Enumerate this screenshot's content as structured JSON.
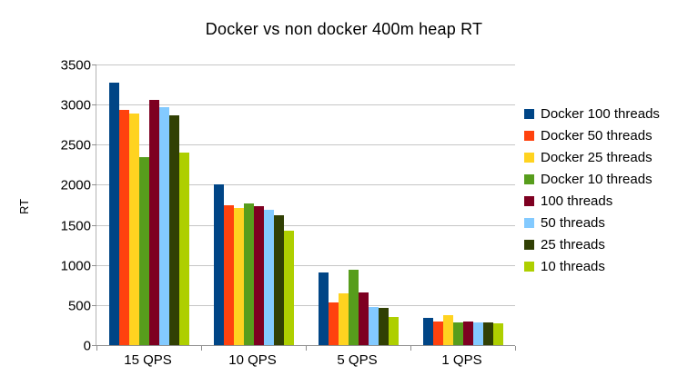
{
  "chart_data": {
    "type": "bar",
    "title": "Docker vs non docker 400m heap RT",
    "xlabel": "",
    "ylabel": "RT",
    "ylim": [
      0,
      3500
    ],
    "yticks": [
      0,
      500,
      1000,
      1500,
      2000,
      2500,
      3000,
      3500
    ],
    "grid": true,
    "legend_position": "right",
    "categories": [
      "15 QPS",
      "10 QPS",
      "5 QPS",
      "1 QPS"
    ],
    "series": [
      {
        "name": "Docker 100 threads",
        "color": "#004586",
        "values": [
          3280,
          2020,
          920,
          355
        ]
      },
      {
        "name": "Docker 50 threads",
        "color": "#FF420E",
        "values": [
          2945,
          1760,
          545,
          305
        ]
      },
      {
        "name": "Docker 25 threads",
        "color": "#FFD320",
        "values": [
          2900,
          1720,
          660,
          385
        ]
      },
      {
        "name": "Docker 10 threads",
        "color": "#579D1C",
        "values": [
          2360,
          1780,
          950,
          295
        ]
      },
      {
        "name": "100 threads",
        "color": "#7E0021",
        "values": [
          3070,
          1750,
          670,
          310
        ]
      },
      {
        "name": "50 threads",
        "color": "#83CAFF",
        "values": [
          2980,
          1700,
          490,
          290
        ]
      },
      {
        "name": "25 threads",
        "color": "#314004",
        "values": [
          2880,
          1630,
          480,
          300
        ]
      },
      {
        "name": "10 threads",
        "color": "#AECF00",
        "values": [
          2410,
          1440,
          365,
          280
        ]
      }
    ]
  }
}
